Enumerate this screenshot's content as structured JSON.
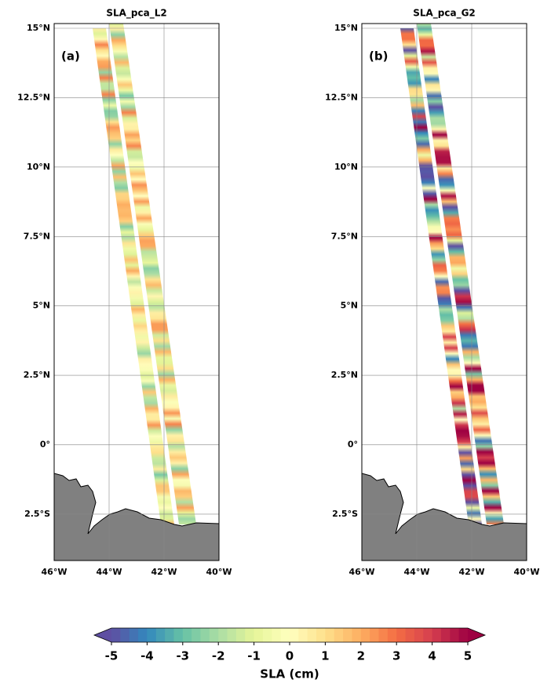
{
  "panels": [
    {
      "title": "SLA_pca_L2",
      "label": "(a)",
      "xlim": [
        -46,
        -40
      ],
      "ylim": [
        -4.17,
        15.17
      ],
      "xticks": [
        {
          "value": -46,
          "label": "46°W"
        },
        {
          "value": -44,
          "label": "44°W"
        },
        {
          "value": -42,
          "label": "42°W"
        },
        {
          "value": -40,
          "label": "40°W"
        }
      ],
      "yticks": [
        {
          "value": 15,
          "label": "15°N"
        },
        {
          "value": 12.5,
          "label": "12.5°N"
        },
        {
          "value": 10,
          "label": "10°N"
        },
        {
          "value": 7.5,
          "label": "7.5°N"
        },
        {
          "value": 5,
          "label": "5°N"
        },
        {
          "value": 2.5,
          "label": "2.5°N"
        },
        {
          "value": 0,
          "label": "0°"
        },
        {
          "value": -2.5,
          "label": "2.5°S"
        }
      ],
      "grid": true
    },
    {
      "title": "SLA_pca_G2",
      "label": "(b)",
      "xlim": [
        -46,
        -40
      ],
      "ylim": [
        -4.17,
        15.17
      ],
      "xticks": [
        {
          "value": -46,
          "label": "46°W"
        },
        {
          "value": -44,
          "label": "44°W"
        },
        {
          "value": -42,
          "label": "42°W"
        },
        {
          "value": -40,
          "label": "40°W"
        }
      ],
      "yticks": [
        {
          "value": 15,
          "label": "15°N"
        },
        {
          "value": 12.5,
          "label": "12.5°N"
        },
        {
          "value": 10,
          "label": "10°N"
        },
        {
          "value": 7.5,
          "label": "7.5°N"
        },
        {
          "value": 5,
          "label": "5°N"
        },
        {
          "value": 2.5,
          "label": "2.5°N"
        },
        {
          "value": 0,
          "label": "0°"
        },
        {
          "value": -2.5,
          "label": "2.5°S"
        }
      ],
      "grid": true
    }
  ],
  "colorbar": {
    "label": "SLA (cm)",
    "lim": [
      -5,
      5
    ],
    "ticks": [
      -5,
      -4,
      -3,
      -2,
      -1,
      0,
      1,
      2,
      3,
      4,
      5
    ],
    "colormap": [
      "#5e4fa2",
      "#3288bd",
      "#66c2a5",
      "#abdda4",
      "#e6f598",
      "#ffffbf",
      "#fee08b",
      "#fdae61",
      "#f46d43",
      "#d53e4f",
      "#9e0142"
    ]
  }
}
